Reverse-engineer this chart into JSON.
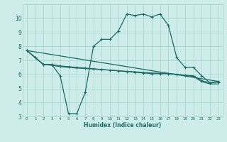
{
  "xlabel": "Humidex (Indice chaleur)",
  "xlim": [
    -0.5,
    23.5
  ],
  "ylim": [
    3,
    11
  ],
  "yticks": [
    3,
    4,
    5,
    6,
    7,
    8,
    9,
    10
  ],
  "xticks": [
    0,
    1,
    2,
    3,
    4,
    5,
    6,
    7,
    8,
    9,
    10,
    11,
    12,
    13,
    14,
    15,
    16,
    17,
    18,
    19,
    20,
    21,
    22,
    23
  ],
  "bg_color": "#ceecea",
  "line_color": "#1a6b65",
  "grid_color": "#a8d8d4",
  "line1_x": [
    0,
    1,
    2,
    3,
    4,
    5,
    6,
    7,
    8,
    9,
    10,
    11,
    12,
    13,
    14,
    15,
    16,
    17,
    18,
    19,
    20,
    21,
    22,
    23
  ],
  "line1_y": [
    7.7,
    7.2,
    6.7,
    6.7,
    5.9,
    3.2,
    3.2,
    4.7,
    8.0,
    8.5,
    8.5,
    9.1,
    10.3,
    10.2,
    10.3,
    10.1,
    10.3,
    9.5,
    7.2,
    6.5,
    6.5,
    5.9,
    5.4,
    5.5
  ],
  "line2_x": [
    0,
    1,
    2,
    3,
    4,
    5,
    6,
    7,
    8,
    9,
    10,
    11,
    12,
    13,
    14,
    15,
    16,
    17,
    18,
    19,
    20,
    21,
    22,
    23
  ],
  "line2_y": [
    7.7,
    7.2,
    6.7,
    6.7,
    6.6,
    6.55,
    6.5,
    6.45,
    6.4,
    6.35,
    6.3,
    6.25,
    6.2,
    6.15,
    6.1,
    6.05,
    6.05,
    6.05,
    6.0,
    5.95,
    5.9,
    5.55,
    5.4,
    5.45
  ],
  "line3_x": [
    0,
    1,
    2,
    3,
    4,
    5,
    6,
    7,
    8,
    9,
    10,
    11,
    12,
    13,
    14,
    15,
    16,
    17,
    18,
    19,
    20,
    21,
    22,
    23
  ],
  "line3_y": [
    7.7,
    7.2,
    6.7,
    6.65,
    6.55,
    6.5,
    6.45,
    6.42,
    6.38,
    6.34,
    6.3,
    6.26,
    6.22,
    6.18,
    6.14,
    6.1,
    6.08,
    6.06,
    6.0,
    5.92,
    5.85,
    5.48,
    5.32,
    5.32
  ],
  "line4_x": [
    0,
    23
  ],
  "line4_y": [
    7.7,
    5.5
  ]
}
